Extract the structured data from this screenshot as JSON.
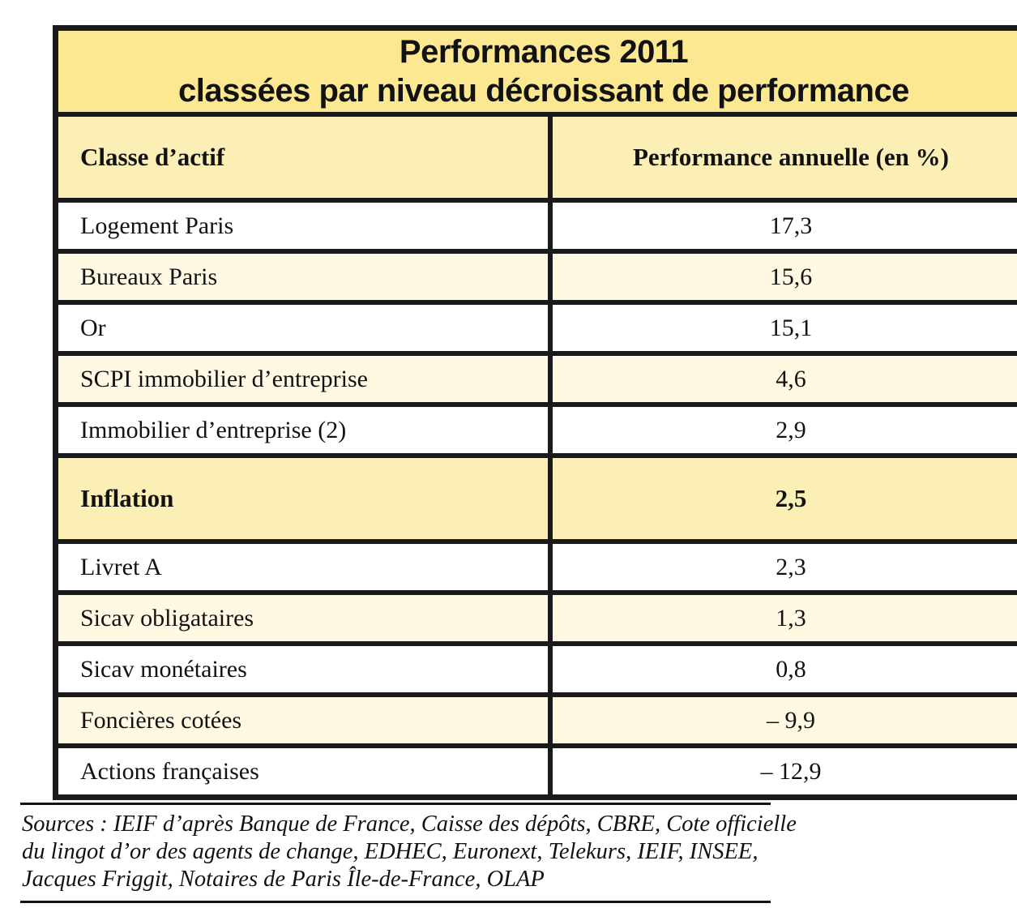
{
  "title": {
    "line1": "Performances 2011",
    "line2": "classées par niveau décroissant de performance"
  },
  "table": {
    "columns": [
      {
        "label": "Classe d’actif"
      },
      {
        "label": "Performance annuelle (en %)"
      }
    ],
    "rows": [
      {
        "label": "Logement Paris",
        "value": "17,3",
        "variant": "white"
      },
      {
        "label": "Bureaux Paris",
        "value": "15,6",
        "variant": "cream"
      },
      {
        "label": "Or",
        "value": "15,1",
        "variant": "white"
      },
      {
        "label": "SCPI immobilier d’entreprise",
        "value": "4,6",
        "variant": "cream"
      },
      {
        "label": "Immobilier d’entreprise (2)",
        "value": "2,9",
        "variant": "white"
      },
      {
        "label": "Inflation",
        "value": "2,5",
        "variant": "highlight"
      },
      {
        "label": "Livret A",
        "value": "2,3",
        "variant": "white"
      },
      {
        "label": "Sicav obligataires",
        "value": "1,3",
        "variant": "cream"
      },
      {
        "label": "Sicav monétaires",
        "value": "0,8",
        "variant": "white"
      },
      {
        "label": "Foncières cotées",
        "value": "– 9,9",
        "variant": "cream"
      },
      {
        "label": "Actions françaises",
        "value": "– 12,9",
        "variant": "white"
      }
    ]
  },
  "sources": {
    "lines": [
      "Sources : IEIF d’après Banque de France, Caisse des dépôts, CBRE, Cote officielle",
      "du lingot d’or des agents de change, EDHEC, Euronext, Telekurs, IEIF, INSEE,",
      "Jacques Friggit, Notaires de Paris Île-de-France, OLAP"
    ]
  },
  "colors": {
    "page_bg": "#FFFFFF",
    "border": "#1A1A1C",
    "text": "#121212",
    "title_bg": "#FDE892",
    "header_bg": "#FBEFB5",
    "highlight_bg": "#FBEFB5",
    "cream_row_bg": "#FFF8E3",
    "white_row_bg": "#FFFFFF"
  },
  "chart_data": {
    "type": "table",
    "title": "Performances 2011 classées par niveau décroissant de performance",
    "columns": [
      "Classe d’actif",
      "Performance annuelle (en %)"
    ],
    "rows": [
      [
        "Logement Paris",
        17.3
      ],
      [
        "Bureaux Paris",
        15.6
      ],
      [
        "Or",
        15.1
      ],
      [
        "SCPI immobilier d’entreprise",
        4.6
      ],
      [
        "Immobilier d’entreprise (2)",
        2.9
      ],
      [
        "Inflation",
        2.5
      ],
      [
        "Livret A",
        2.3
      ],
      [
        "Sicav obligataires",
        1.3
      ],
      [
        "Sicav monétaires",
        0.8
      ],
      [
        "Foncières cotées",
        -9.9
      ],
      [
        "Actions françaises",
        -12.9
      ]
    ],
    "highlight_row": "Inflation",
    "source": "Sources : IEIF d’après Banque de France, Caisse des dépôts, CBRE, Cote officielle du lingot d’or des agents de change, EDHEC, Euronext, Telekurs, IEIF, INSEE, Jacques Friggit, Notaires de Paris Île-de-France, OLAP"
  }
}
